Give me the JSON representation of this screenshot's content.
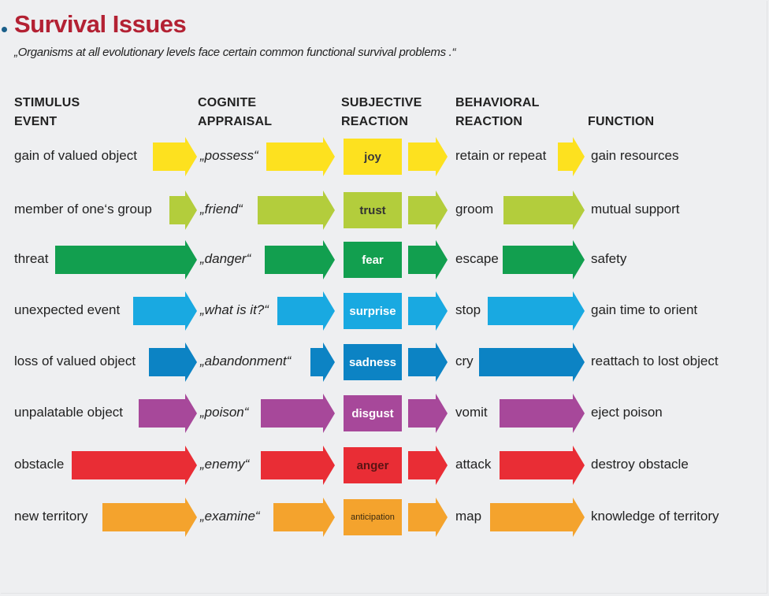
{
  "header": {
    "title": "Survival Issues",
    "subtitle": "„Organisms at all evolutionary levels face certain common functional survival problems .“"
  },
  "columns": [
    {
      "line1": "STIMULUS",
      "line2": "EVENT"
    },
    {
      "line1": "COGNITE",
      "line2": "APPRAISAL"
    },
    {
      "line1": "SUBJECTIVE",
      "line2": "REACTION"
    },
    {
      "line1": "BEHAVIORAL",
      "line2": "REACTION"
    },
    {
      "line1": "",
      "line2": "FUNCTION"
    }
  ],
  "rows": [
    {
      "stimulus": "gain of valued object",
      "appraisal": "„possess“",
      "reaction": "joy",
      "behavior": "retain or repeat",
      "function": "gain resources",
      "color": "#fde11f",
      "text_color": "#3a3a3a"
    },
    {
      "stimulus": "member of one‘s group",
      "appraisal": "„friend“",
      "reaction": "trust",
      "behavior": "groom",
      "function": "mutual support",
      "color": "#b3cd3c",
      "text_color": "#333333"
    },
    {
      "stimulus": "threat",
      "appraisal": "„danger“",
      "reaction": "fear",
      "behavior": "escape",
      "function": "safety",
      "color": "#129f4f",
      "text_color": "#ffffff"
    },
    {
      "stimulus": "unexpected event",
      "appraisal": "„what is it?“",
      "reaction": "surprise",
      "behavior": "stop",
      "function": "gain time to orient",
      "color": "#19a9e1",
      "text_color": "#ffffff"
    },
    {
      "stimulus": "loss of valued object",
      "appraisal": "„abandonment“",
      "reaction": "sadness",
      "behavior": "cry",
      "function": "reattach to lost object",
      "color": "#0c83c4",
      "text_color": "#ffffff"
    },
    {
      "stimulus": "unpalatable object",
      "appraisal": "„poison“",
      "reaction": "disgust",
      "behavior": "vomit",
      "function": "eject poison",
      "color": "#a7489a",
      "text_color": "#ffffff"
    },
    {
      "stimulus": "obstacle",
      "appraisal": "„enemy“",
      "reaction": "anger",
      "behavior": "attack",
      "function": "destroy obstacle",
      "color": "#e92d35",
      "text_color": "#5a1414"
    },
    {
      "stimulus": "new territory",
      "appraisal": "„examine“",
      "reaction": "anticipation",
      "behavior": "map",
      "function": "knowledge of territory",
      "color": "#f4a32d",
      "text_color": "#3a2a10"
    }
  ]
}
